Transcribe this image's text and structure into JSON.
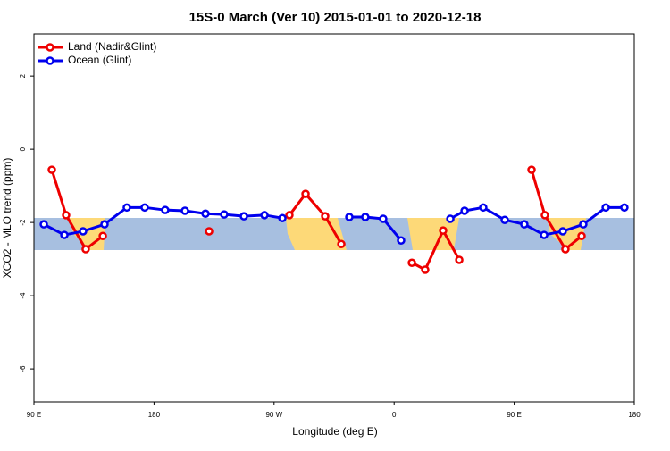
{
  "chart_data": {
    "type": "line",
    "title": "15S-0 March (Ver 10)   2015-01-01 to 2020-12-18",
    "xlabel": "Longitude (deg E)",
    "ylabel": "XCO2 - MLO trend (ppm)",
    "xlim": [
      90,
      540
    ],
    "ylim": [
      -6.9,
      3.15
    ],
    "xticks": [
      {
        "value": 90,
        "label": "90 E"
      },
      180,
      {
        "value": 270,
        "label": "90 W"
      },
      {
        "value": 360,
        "label": "0"
      },
      {
        "value": 450,
        "label": "90 E"
      },
      {
        "value": 540,
        "label": "180"
      }
    ],
    "yticks": [
      -6,
      -4,
      -2,
      0,
      2
    ],
    "legend": "top-left",
    "series": [
      {
        "name": "Land (Nadir&Glint)",
        "color": "#ee0000",
        "x": [
          103.4,
          114.1,
          128.8,
          141.6,
          180,
          221.3,
          250,
          281.5,
          293.6,
          308.3,
          320.4,
          350,
          373.3,
          383.3,
          396.7,
          408.8,
          440,
          463,
          473,
          488.4,
          500.5
        ],
        "values": [
          -0.56,
          -1.8,
          -2.73,
          -2.37,
          null,
          -2.24,
          null,
          -1.8,
          -1.22,
          -1.83,
          -2.59,
          null,
          -3.1,
          -3.29,
          -2.22,
          -3.02,
          null,
          -0.56,
          -1.8,
          -2.73,
          -2.37
        ]
      },
      {
        "name": "Ocean (Glint)",
        "color": "#0000ee",
        "x": [
          97.4,
          112.8,
          126.8,
          142.9,
          159.6,
          173,
          188.4,
          203.2,
          218.6,
          232.6,
          247.4,
          262.8,
          276.2,
          300,
          326.4,
          338.4,
          351.8,
          365.2,
          385,
          402.1,
          412.8,
          426.8,
          442.9,
          457.6,
          472.4,
          486.4,
          501.8,
          518.6,
          532.6
        ],
        "values": [
          -2.05,
          -2.34,
          -2.24,
          -2.05,
          -1.59,
          -1.59,
          -1.66,
          -1.68,
          -1.76,
          -1.78,
          -1.83,
          -1.8,
          -1.88,
          null,
          -1.85,
          -1.85,
          -1.9,
          -2.49,
          null,
          -1.9,
          -1.68,
          -1.59,
          -1.93,
          -2.05,
          -2.34,
          -2.24,
          -2.05,
          -1.59,
          -1.59
        ]
      }
    ]
  }
}
